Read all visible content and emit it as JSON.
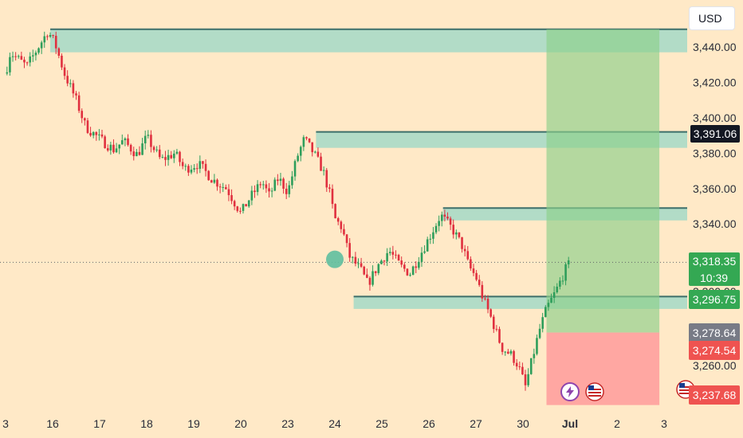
{
  "currency": "USD",
  "colors": {
    "background": "#ffe9c7",
    "up": "#2e9e5b",
    "down": "#e0303f",
    "zone": "#7fd3c7",
    "zone_border": "#3d6f6a",
    "target_zone": "#8ccf8a",
    "stop_zone": "#ff9b9b"
  },
  "price_tags": {
    "resistance": "3,391.06",
    "current": "3,318.35",
    "countdown": "10:39",
    "entry_green": "3,296.75",
    "entry_gray": "3,278.64",
    "stop": "3,274.54",
    "low": "3,237.68",
    "hidden_under_tag": "3,300.00"
  },
  "chart_data": {
    "type": "candlestick",
    "title": "",
    "xlabel": "",
    "ylabel": "",
    "ylim": [
      3227,
      3455
    ],
    "y_ticks": [
      "3,260.00",
      "3,340.00",
      "3,360.00",
      "3,380.00",
      "3,400.00",
      "3,420.00",
      "3,440.00"
    ],
    "y_tick_values": [
      3260,
      3340,
      3360,
      3380,
      3400,
      3420,
      3440
    ],
    "x_ticks": [
      "3",
      "16",
      "17",
      "18",
      "19",
      "20",
      "23",
      "24",
      "25",
      "26",
      "27",
      "30",
      "Jul",
      "2",
      "3"
    ],
    "x_tick_index": [
      0,
      1,
      2,
      3,
      4,
      5,
      6,
      7,
      8,
      9,
      10,
      11,
      12,
      13,
      14
    ],
    "price_path": [
      [
        0,
        3425
      ],
      [
        0.1,
        3437
      ],
      [
        0.45,
        3429
      ],
      [
        0.9,
        3449
      ],
      [
        1.05,
        3442
      ],
      [
        1.25,
        3425
      ],
      [
        1.5,
        3410
      ],
      [
        1.7,
        3395
      ],
      [
        2.0,
        3388
      ],
      [
        2.3,
        3382
      ],
      [
        2.5,
        3387
      ],
      [
        2.8,
        3379
      ],
      [
        3.0,
        3389
      ],
      [
        3.3,
        3376
      ],
      [
        3.6,
        3380
      ],
      [
        3.8,
        3371
      ],
      [
        4.1,
        3374
      ],
      [
        4.4,
        3365
      ],
      [
        4.7,
        3360
      ],
      [
        5.0,
        3346
      ],
      [
        5.2,
        3355
      ],
      [
        5.45,
        3364
      ],
      [
        5.6,
        3356
      ],
      [
        5.8,
        3366
      ],
      [
        6.0,
        3358
      ],
      [
        6.2,
        3378
      ],
      [
        6.35,
        3388
      ],
      [
        6.55,
        3380
      ],
      [
        6.75,
        3370
      ],
      [
        6.9,
        3356
      ],
      [
        7.0,
        3343
      ],
      [
        7.15,
        3338
      ],
      [
        7.3,
        3322
      ],
      [
        7.55,
        3314
      ],
      [
        7.7,
        3306
      ],
      [
        7.95,
        3318
      ],
      [
        8.15,
        3325
      ],
      [
        8.4,
        3316
      ],
      [
        8.6,
        3312
      ],
      [
        8.8,
        3322
      ],
      [
        9.0,
        3332
      ],
      [
        9.25,
        3345
      ],
      [
        9.5,
        3337
      ],
      [
        9.7,
        3328
      ],
      [
        9.85,
        3316
      ],
      [
        10.0,
        3310
      ],
      [
        10.15,
        3298
      ],
      [
        10.35,
        3285
      ],
      [
        10.55,
        3270
      ],
      [
        10.75,
        3266
      ],
      [
        10.9,
        3260
      ],
      [
        11.05,
        3248
      ],
      [
        11.2,
        3264
      ],
      [
        11.35,
        3280
      ],
      [
        11.5,
        3292
      ],
      [
        11.7,
        3302
      ],
      [
        11.9,
        3314
      ],
      [
        12.0,
        3318
      ]
    ],
    "zones": [
      {
        "x_start": 0.95,
        "x_end": 14.6,
        "y_low": 3437,
        "y_high": 3450
      },
      {
        "x_start": 6.6,
        "x_end": 14.6,
        "y_low": 3383,
        "y_high": 3392
      },
      {
        "x_start": 9.3,
        "x_end": 14.6,
        "y_low": 3342,
        "y_high": 3349
      },
      {
        "x_start": 7.4,
        "x_end": 14.6,
        "y_low": 3292,
        "y_high": 3299
      }
    ],
    "position": {
      "x_start": 11.5,
      "x_end": 13.9,
      "entry": 3278.64,
      "target": 3450,
      "stop": 3237.68
    },
    "current_price": 3318.35,
    "marker_circle": {
      "x": 7.0,
      "y": 3320
    }
  }
}
